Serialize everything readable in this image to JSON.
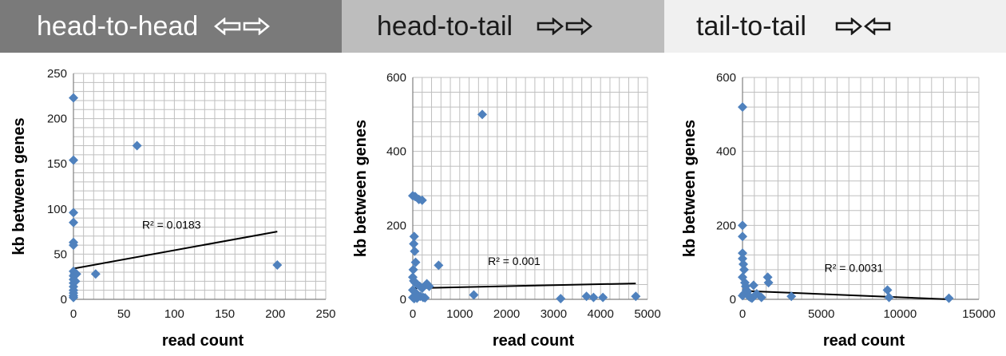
{
  "banners": [
    {
      "label": "head-to-head",
      "arrows": [
        "left-arrow-icon",
        "right-arrow-icon"
      ],
      "bg": "#7a7a7a",
      "fg": "#ffffff"
    },
    {
      "label": "head-to-tail",
      "arrows": [
        "right-arrow-icon",
        "right-arrow-icon"
      ],
      "bg": "#bdbdbd",
      "fg": "#1a1a1a"
    },
    {
      "label": "tail-to-tail",
      "arrows": [
        "right-arrow-icon",
        "left-arrow-icon"
      ],
      "bg": "#f0f0f0",
      "fg": "#1a1a1a"
    }
  ],
  "colors": {
    "marker": "#4f81bd",
    "grid": "#bfbfbf",
    "trendline": "#000000"
  },
  "chart_data": [
    {
      "type": "scatter",
      "xlabel": "read count",
      "ylabel": "kb between genes",
      "xlim": [
        0,
        250
      ],
      "ylim": [
        0,
        250
      ],
      "xticks": [
        "0",
        "50",
        "100",
        "150",
        "200",
        "250"
      ],
      "yticks": [
        "0",
        "50",
        "100",
        "150",
        "200",
        "250"
      ],
      "minor_grid": {
        "x": 10,
        "y": 10
      },
      "grid": true,
      "points": [
        [
          0,
          223
        ],
        [
          0,
          154
        ],
        [
          0,
          96
        ],
        [
          0,
          85
        ],
        [
          0,
          63
        ],
        [
          0,
          60
        ],
        [
          0,
          31
        ],
        [
          0,
          26
        ],
        [
          0,
          22
        ],
        [
          0,
          18
        ],
        [
          0,
          14
        ],
        [
          0,
          10
        ],
        [
          0,
          7
        ],
        [
          0,
          4
        ],
        [
          0,
          2
        ],
        [
          1,
          28
        ],
        [
          2,
          20
        ],
        [
          3,
          28
        ],
        [
          22,
          28
        ],
        [
          63,
          170
        ],
        [
          202,
          38
        ]
      ],
      "trendline": {
        "from": [
          0,
          34
        ],
        "to": [
          202,
          75
        ]
      },
      "annotation": {
        "text": "R² = 0.0183",
        "x": 68,
        "y": 78
      }
    },
    {
      "type": "scatter",
      "xlabel": "read count",
      "ylabel": "kb between genes",
      "xlim": [
        0,
        5000
      ],
      "ylim": [
        0,
        600
      ],
      "xticks": [
        "0",
        "1000",
        "2000",
        "3000",
        "4000",
        "5000"
      ],
      "yticks": [
        "0",
        "200",
        "400",
        "600"
      ],
      "minor_grid": {
        "x": 200,
        "y": 40
      },
      "grid": true,
      "points": [
        [
          0,
          280
        ],
        [
          50,
          278
        ],
        [
          130,
          270
        ],
        [
          200,
          268
        ],
        [
          30,
          170
        ],
        [
          20,
          150
        ],
        [
          40,
          130
        ],
        [
          60,
          100
        ],
        [
          10,
          80
        ],
        [
          0,
          60
        ],
        [
          20,
          50
        ],
        [
          50,
          45
        ],
        [
          100,
          40
        ],
        [
          150,
          35
        ],
        [
          200,
          30
        ],
        [
          0,
          25
        ],
        [
          40,
          20
        ],
        [
          80,
          15
        ],
        [
          120,
          10
        ],
        [
          160,
          8
        ],
        [
          220,
          5
        ],
        [
          0,
          5
        ],
        [
          30,
          2
        ],
        [
          90,
          3
        ],
        [
          260,
          4
        ],
        [
          300,
          42
        ],
        [
          350,
          35
        ],
        [
          550,
          92
        ],
        [
          1480,
          500
        ],
        [
          1300,
          12
        ],
        [
          3150,
          2
        ],
        [
          3700,
          8
        ],
        [
          3850,
          5
        ],
        [
          4050,
          5
        ],
        [
          4750,
          8
        ]
      ],
      "trendline": {
        "from": [
          0,
          30
        ],
        "to": [
          4750,
          43
        ]
      },
      "annotation": {
        "text": "R² = 0.001",
        "x": 1600,
        "y": 93
      }
    },
    {
      "type": "scatter",
      "xlabel": "read count",
      "ylabel": "kb between genes",
      "xlim": [
        0,
        15000
      ],
      "ylim": [
        0,
        600
      ],
      "xticks": [
        "0",
        "5000",
        "10000",
        "15000"
      ],
      "yticks": [
        "0",
        "200",
        "400",
        "600"
      ],
      "minor_grid": {
        "x": 750,
        "y": 40
      },
      "grid": true,
      "points": [
        [
          0,
          520
        ],
        [
          0,
          200
        ],
        [
          0,
          170
        ],
        [
          0,
          125
        ],
        [
          0,
          110
        ],
        [
          50,
          95
        ],
        [
          100,
          80
        ],
        [
          0,
          60
        ],
        [
          150,
          45
        ],
        [
          200,
          35
        ],
        [
          250,
          25
        ],
        [
          300,
          20
        ],
        [
          100,
          15
        ],
        [
          0,
          10
        ],
        [
          400,
          8
        ],
        [
          500,
          5
        ],
        [
          600,
          3
        ],
        [
          700,
          38
        ],
        [
          900,
          15
        ],
        [
          1200,
          5
        ],
        [
          1600,
          60
        ],
        [
          1650,
          45
        ],
        [
          3100,
          8
        ],
        [
          9200,
          25
        ],
        [
          9300,
          5
        ],
        [
          13100,
          3
        ]
      ],
      "trendline": {
        "from": [
          0,
          23
        ],
        "to": [
          13100,
          0
        ]
      },
      "annotation": {
        "text": "R² = 0.0031",
        "x": 5200,
        "y": 75
      }
    }
  ]
}
